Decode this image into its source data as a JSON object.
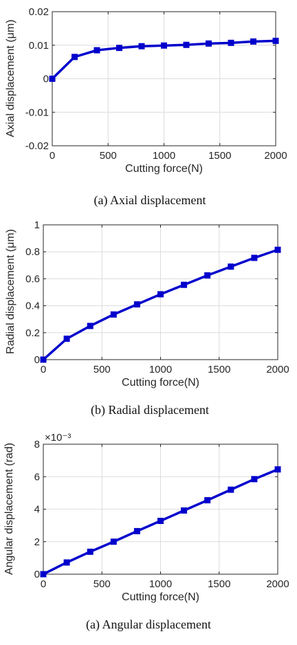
{
  "chart_data": [
    {
      "type": "line",
      "xlabel": "Cutting force(N)",
      "ylabel": "Axial displacement (μm)",
      "caption": "(a) Axial displacement",
      "xlim": [
        0,
        2000
      ],
      "ylim": [
        -0.02,
        0.02
      ],
      "xticks": [
        0,
        500,
        1000,
        1500,
        2000
      ],
      "xtick_labels": [
        "0",
        "500",
        "1000",
        "1500",
        "2000"
      ],
      "yticks": [
        -0.02,
        -0.01,
        0,
        0.01,
        0.02
      ],
      "ytick_labels": [
        "-0.02",
        "-0.01",
        "0",
        "0.01",
        "0.02"
      ],
      "grid": true,
      "color": "#0000cc",
      "marker": "square",
      "x": [
        0,
        200,
        400,
        600,
        800,
        1000,
        1200,
        1400,
        1600,
        1800,
        2000
      ],
      "y": [
        0.0,
        0.0065,
        0.0085,
        0.0092,
        0.0097,
        0.0099,
        0.0101,
        0.0105,
        0.0107,
        0.0111,
        0.0113
      ]
    },
    {
      "type": "line",
      "xlabel": "Cutting force(N)",
      "ylabel": "Radial displacement (μm)",
      "caption": "(b) Radial displacement",
      "xlim": [
        0,
        2000
      ],
      "ylim": [
        0,
        1
      ],
      "xticks": [
        0,
        500,
        1000,
        1500,
        2000
      ],
      "xtick_labels": [
        "0",
        "500",
        "1000",
        "1500",
        "2000"
      ],
      "yticks": [
        0,
        0.2,
        0.4,
        0.6,
        0.8,
        1
      ],
      "ytick_labels": [
        "0",
        "0.2",
        "0.4",
        "0.6",
        "0.8",
        "1"
      ],
      "grid": true,
      "color": "#0000cc",
      "marker": "square",
      "x": [
        0,
        200,
        400,
        600,
        800,
        1000,
        1200,
        1400,
        1600,
        1800,
        2000
      ],
      "y": [
        0.0,
        0.155,
        0.25,
        0.335,
        0.41,
        0.485,
        0.555,
        0.625,
        0.69,
        0.755,
        0.815
      ]
    },
    {
      "type": "line",
      "xlabel": "Cutting force(N)",
      "ylabel": "Angular displacement (rad)",
      "caption": "(a) Angular displacement",
      "exponent_label": "×10⁻³",
      "xlim": [
        0,
        2000
      ],
      "ylim": [
        0,
        8
      ],
      "xticks": [
        0,
        500,
        1000,
        1500,
        2000
      ],
      "xtick_labels": [
        "0",
        "500",
        "1000",
        "1500",
        "2000"
      ],
      "yticks": [
        0,
        2,
        4,
        6,
        8
      ],
      "ytick_labels": [
        "0",
        "2",
        "4",
        "6",
        "8"
      ],
      "grid": true,
      "color": "#0000cc",
      "marker": "square",
      "x": [
        0,
        200,
        400,
        600,
        800,
        1000,
        1200,
        1400,
        1600,
        1800,
        2000
      ],
      "y": [
        0.0,
        0.72,
        1.38,
        2.0,
        2.65,
        3.28,
        3.92,
        4.55,
        5.2,
        5.85,
        6.45
      ]
    }
  ]
}
